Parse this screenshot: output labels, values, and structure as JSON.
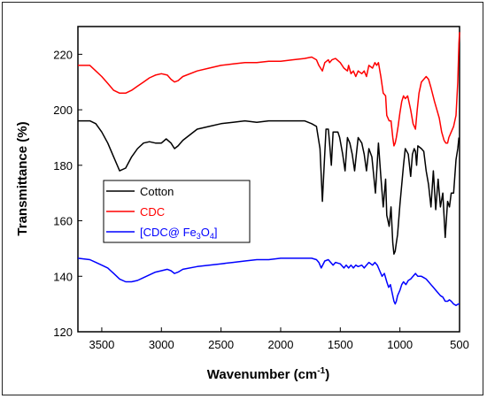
{
  "chart_data": {
    "type": "line",
    "xlabel": "Wavenumber (cm",
    "xlabel_sup": "-1",
    "xlabel_end": ")",
    "ylabel": "Transmittance (%)",
    "xlim": [
      3700,
      500
    ],
    "ylim": [
      120,
      230
    ],
    "x_reversed": true,
    "x_ticks": [
      3500,
      3000,
      2500,
      2000,
      1500,
      1000,
      500
    ],
    "y_ticks": [
      120,
      140,
      160,
      180,
      200,
      220
    ],
    "legend_position": "middle-left",
    "series": [
      {
        "name": "Cotton",
        "color": "#000000",
        "points": [
          [
            3700,
            196
          ],
          [
            3600,
            196
          ],
          [
            3550,
            195
          ],
          [
            3500,
            192
          ],
          [
            3450,
            188
          ],
          [
            3400,
            183
          ],
          [
            3350,
            178
          ],
          [
            3300,
            179
          ],
          [
            3250,
            183
          ],
          [
            3200,
            186
          ],
          [
            3150,
            188
          ],
          [
            3100,
            188.5
          ],
          [
            3050,
            188
          ],
          [
            3000,
            188
          ],
          [
            2960,
            189.5
          ],
          [
            2920,
            188
          ],
          [
            2890,
            186
          ],
          [
            2860,
            187
          ],
          [
            2820,
            189
          ],
          [
            2700,
            193
          ],
          [
            2600,
            194
          ],
          [
            2500,
            195
          ],
          [
            2400,
            195.5
          ],
          [
            2300,
            196
          ],
          [
            2200,
            195.5
          ],
          [
            2100,
            196
          ],
          [
            2000,
            196
          ],
          [
            1900,
            196
          ],
          [
            1800,
            196
          ],
          [
            1740,
            195
          ],
          [
            1700,
            194
          ],
          [
            1670,
            186
          ],
          [
            1650,
            167
          ],
          [
            1635,
            180
          ],
          [
            1620,
            193
          ],
          [
            1600,
            193
          ],
          [
            1590,
            188
          ],
          [
            1575,
            180
          ],
          [
            1560,
            192
          ],
          [
            1520,
            192
          ],
          [
            1505,
            190
          ],
          [
            1480,
            184
          ],
          [
            1460,
            178
          ],
          [
            1440,
            190
          ],
          [
            1420,
            188
          ],
          [
            1400,
            184
          ],
          [
            1380,
            178
          ],
          [
            1370,
            182
          ],
          [
            1350,
            190
          ],
          [
            1320,
            188
          ],
          [
            1300,
            184
          ],
          [
            1280,
            178
          ],
          [
            1260,
            186
          ],
          [
            1235,
            183
          ],
          [
            1205,
            170
          ],
          [
            1180,
            188
          ],
          [
            1160,
            176
          ],
          [
            1140,
            165
          ],
          [
            1120,
            175
          ],
          [
            1110,
            162
          ],
          [
            1090,
            158
          ],
          [
            1075,
            165
          ],
          [
            1060,
            152
          ],
          [
            1050,
            148
          ],
          [
            1040,
            149
          ],
          [
            1030,
            152
          ],
          [
            1020,
            155
          ],
          [
            1000,
            166
          ],
          [
            985,
            173
          ],
          [
            970,
            180
          ],
          [
            955,
            186
          ],
          [
            930,
            184
          ],
          [
            910,
            176
          ],
          [
            895,
            184
          ],
          [
            880,
            186
          ],
          [
            870,
            185
          ],
          [
            860,
            180
          ],
          [
            850,
            187
          ],
          [
            820,
            186
          ],
          [
            800,
            185
          ],
          [
            780,
            178
          ],
          [
            760,
            173
          ],
          [
            740,
            165
          ],
          [
            720,
            178
          ],
          [
            700,
            164
          ],
          [
            680,
            175
          ],
          [
            660,
            165
          ],
          [
            640,
            170
          ],
          [
            620,
            154
          ],
          [
            600,
            167
          ],
          [
            585,
            165
          ],
          [
            570,
            170
          ],
          [
            550,
            170
          ],
          [
            530,
            182
          ],
          [
            515,
            186
          ],
          [
            505,
            190
          ]
        ]
      },
      {
        "name": "CDC",
        "color": "#ff0000",
        "points": [
          [
            3700,
            216
          ],
          [
            3600,
            216
          ],
          [
            3550,
            214
          ],
          [
            3500,
            212
          ],
          [
            3450,
            209.5
          ],
          [
            3400,
            207
          ],
          [
            3350,
            206
          ],
          [
            3300,
            206
          ],
          [
            3250,
            207
          ],
          [
            3200,
            208.5
          ],
          [
            3150,
            210
          ],
          [
            3100,
            211.5
          ],
          [
            3050,
            212.5
          ],
          [
            3000,
            213
          ],
          [
            2950,
            212.5
          ],
          [
            2920,
            211
          ],
          [
            2890,
            210
          ],
          [
            2860,
            210.5
          ],
          [
            2820,
            212
          ],
          [
            2700,
            214
          ],
          [
            2600,
            215
          ],
          [
            2500,
            216
          ],
          [
            2400,
            216.5
          ],
          [
            2300,
            217
          ],
          [
            2200,
            217
          ],
          [
            2100,
            217.5
          ],
          [
            2000,
            217.5
          ],
          [
            1900,
            218
          ],
          [
            1800,
            218.5
          ],
          [
            1740,
            219
          ],
          [
            1700,
            218
          ],
          [
            1680,
            216
          ],
          [
            1650,
            214
          ],
          [
            1630,
            217
          ],
          [
            1600,
            218
          ],
          [
            1590,
            217
          ],
          [
            1570,
            218
          ],
          [
            1540,
            218.5
          ],
          [
            1500,
            217
          ],
          [
            1470,
            215
          ],
          [
            1440,
            214
          ],
          [
            1430,
            216
          ],
          [
            1410,
            213
          ],
          [
            1390,
            214
          ],
          [
            1370,
            212
          ],
          [
            1350,
            214
          ],
          [
            1320,
            213
          ],
          [
            1300,
            214
          ],
          [
            1280,
            212
          ],
          [
            1260,
            216
          ],
          [
            1230,
            215
          ],
          [
            1210,
            217
          ],
          [
            1195,
            216
          ],
          [
            1180,
            217
          ],
          [
            1160,
            212
          ],
          [
            1140,
            206
          ],
          [
            1120,
            205
          ],
          [
            1110,
            198
          ],
          [
            1090,
            196
          ],
          [
            1075,
            196
          ],
          [
            1060,
            190
          ],
          [
            1050,
            187
          ],
          [
            1040,
            188
          ],
          [
            1030,
            190
          ],
          [
            1015,
            194
          ],
          [
            1000,
            199
          ],
          [
            985,
            203
          ],
          [
            970,
            205
          ],
          [
            955,
            204
          ],
          [
            935,
            205
          ],
          [
            910,
            200
          ],
          [
            890,
            195
          ],
          [
            870,
            193
          ],
          [
            855,
            200
          ],
          [
            840,
            206
          ],
          [
            820,
            210
          ],
          [
            800,
            211
          ],
          [
            780,
            212
          ],
          [
            760,
            211
          ],
          [
            740,
            208
          ],
          [
            710,
            203
          ],
          [
            690,
            200
          ],
          [
            670,
            197
          ],
          [
            650,
            192
          ],
          [
            630,
            189
          ],
          [
            615,
            188
          ],
          [
            600,
            188
          ],
          [
            590,
            190
          ],
          [
            570,
            192
          ],
          [
            550,
            194
          ],
          [
            530,
            198
          ],
          [
            515,
            210
          ],
          [
            505,
            224
          ],
          [
            500,
            228
          ]
        ]
      },
      {
        "name": "[CDC@ Fe",
        "name_sub": "3",
        "name_mid": "O",
        "name_sub2": "4",
        "name_end": "]",
        "color": "#0000ff",
        "points": [
          [
            3700,
            146.5
          ],
          [
            3600,
            146
          ],
          [
            3550,
            145
          ],
          [
            3500,
            144
          ],
          [
            3450,
            143
          ],
          [
            3400,
            141
          ],
          [
            3350,
            139
          ],
          [
            3300,
            138
          ],
          [
            3250,
            138
          ],
          [
            3200,
            138.5
          ],
          [
            3150,
            139.5
          ],
          [
            3100,
            140.5
          ],
          [
            3050,
            141.5
          ],
          [
            3000,
            142
          ],
          [
            2950,
            142.5
          ],
          [
            2920,
            142
          ],
          [
            2890,
            141
          ],
          [
            2860,
            141.5
          ],
          [
            2820,
            142.5
          ],
          [
            2700,
            143.5
          ],
          [
            2600,
            144
          ],
          [
            2500,
            144.5
          ],
          [
            2400,
            145
          ],
          [
            2300,
            145.5
          ],
          [
            2200,
            146
          ],
          [
            2100,
            146
          ],
          [
            2000,
            146.5
          ],
          [
            1900,
            146.5
          ],
          [
            1800,
            146.5
          ],
          [
            1740,
            146.5
          ],
          [
            1700,
            146
          ],
          [
            1680,
            145
          ],
          [
            1660,
            143
          ],
          [
            1630,
            145.5
          ],
          [
            1600,
            146
          ],
          [
            1580,
            145
          ],
          [
            1560,
            144
          ],
          [
            1540,
            145
          ],
          [
            1500,
            144.5
          ],
          [
            1470,
            143
          ],
          [
            1450,
            144
          ],
          [
            1430,
            143
          ],
          [
            1410,
            144
          ],
          [
            1390,
            143
          ],
          [
            1370,
            144
          ],
          [
            1350,
            143.5
          ],
          [
            1320,
            144
          ],
          [
            1300,
            143
          ],
          [
            1280,
            144
          ],
          [
            1260,
            145
          ],
          [
            1230,
            144
          ],
          [
            1210,
            145
          ],
          [
            1190,
            144
          ],
          [
            1170,
            142
          ],
          [
            1150,
            140
          ],
          [
            1130,
            141
          ],
          [
            1110,
            138
          ],
          [
            1095,
            136
          ],
          [
            1080,
            137
          ],
          [
            1065,
            134
          ],
          [
            1050,
            131
          ],
          [
            1040,
            130
          ],
          [
            1030,
            131
          ],
          [
            1020,
            133
          ],
          [
            1000,
            135
          ],
          [
            985,
            137
          ],
          [
            970,
            138
          ],
          [
            950,
            137
          ],
          [
            930,
            138.5
          ],
          [
            910,
            139
          ],
          [
            890,
            140
          ],
          [
            870,
            141
          ],
          [
            850,
            140
          ],
          [
            820,
            140
          ],
          [
            800,
            139.5
          ],
          [
            780,
            139
          ],
          [
            760,
            138
          ],
          [
            740,
            137
          ],
          [
            720,
            136
          ],
          [
            700,
            135
          ],
          [
            680,
            134
          ],
          [
            660,
            133
          ],
          [
            640,
            132.5
          ],
          [
            620,
            131
          ],
          [
            600,
            131
          ],
          [
            585,
            131.5
          ],
          [
            570,
            131
          ],
          [
            550,
            130
          ],
          [
            530,
            129.5
          ],
          [
            510,
            130
          ],
          [
            500,
            130
          ]
        ]
      }
    ]
  }
}
